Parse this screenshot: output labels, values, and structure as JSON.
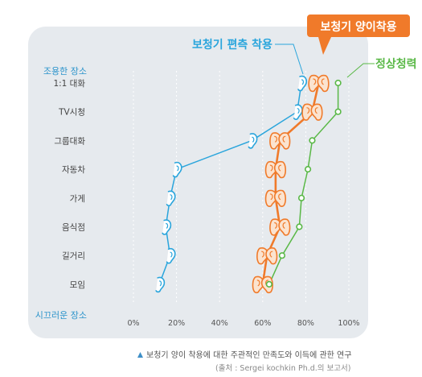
{
  "chart_data": {
    "type": "line",
    "categories": [
      "1:1 대화",
      "TV시청",
      "그룹대화",
      "자동차",
      "가게",
      "음식점",
      "길거리",
      "모임"
    ],
    "top_label": "조용한 장소",
    "bottom_label": "시끄러운 장소",
    "xlim": [
      0,
      100
    ],
    "x_ticks": [
      "0%",
      "20%",
      "40%",
      "60%",
      "80%",
      "100%"
    ],
    "x_tick_values": [
      0,
      20,
      40,
      60,
      80,
      100
    ],
    "grid": true,
    "series": [
      {
        "name": "보청기 편측 착용",
        "color": "#2AA5DC",
        "values": [
          78,
          76,
          55,
          20,
          17,
          15,
          17,
          12
        ]
      },
      {
        "name": "보청기 양이착용",
        "color": "#F07A2A",
        "values": [
          86,
          83,
          68,
          66,
          66,
          68,
          62,
          60
        ]
      },
      {
        "name": "정상청력",
        "color": "#59B846",
        "values": [
          95,
          95,
          83,
          81,
          78,
          77,
          69,
          63
        ]
      }
    ]
  },
  "caption": {
    "main": "보청기 양이 착용에 대한 주관적인 만족도와 이득에 관한 연구",
    "source": "(출처 : Sergei kochkin Ph.d.의 보고서)"
  }
}
